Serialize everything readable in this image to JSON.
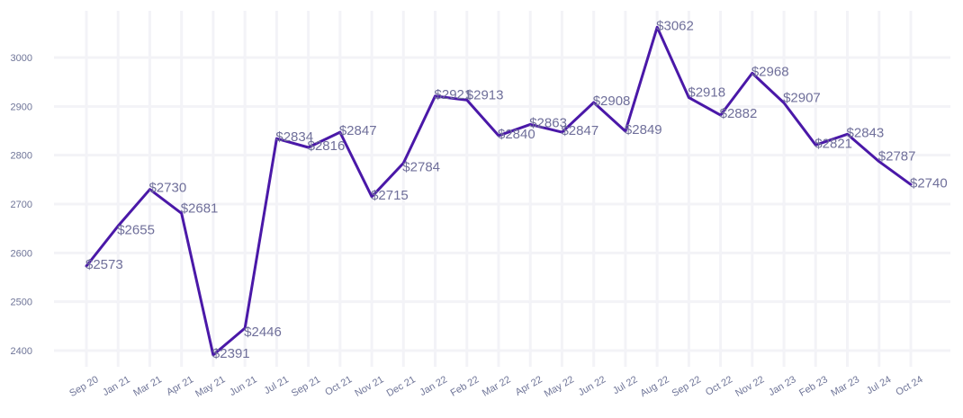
{
  "chart_data": {
    "type": "line",
    "title": "",
    "xlabel": "",
    "ylabel": "",
    "ylim": [
      2380,
      3080
    ],
    "yticks": [
      2400,
      2500,
      2600,
      2700,
      2800,
      2900,
      3000
    ],
    "grid": true,
    "legend": "none",
    "line_color": "#4a18a8",
    "label_color": "#6f6f9a",
    "tick_color": "#6f7598",
    "grid_color": "#f3f3f7",
    "categories": [
      "Sep 20",
      "Jan 21",
      "Mar 21",
      "Apr 21",
      "May 21",
      "Jun 21",
      "Jul 21",
      "Sep 21",
      "Oct 21",
      "Nov 21",
      "Dec 21",
      "Jan 22",
      "Feb 22",
      "Mar 22",
      "Apr 22",
      "May 22",
      "Jun 22",
      "Jul 22",
      "Aug 22",
      "Sep 22",
      "Oct 22",
      "Nov 22",
      "Jan 23",
      "Feb 23",
      "Mar 23",
      "Jul 24",
      "Oct 24"
    ],
    "values": [
      2573,
      2655,
      2730,
      2681,
      2391,
      2446,
      2834,
      2816,
      2847,
      2715,
      2784,
      2921,
      2913,
      2840,
      2863,
      2847,
      2908,
      2849,
      3062,
      2918,
      2882,
      2968,
      2907,
      2821,
      2843,
      2787,
      2740
    ],
    "data_labels": [
      "$2573",
      "$2655",
      "$2730",
      "$2681",
      "$2391",
      "$2446",
      "$2834",
      "$2816",
      "$2847",
      "$2715",
      "$2784",
      "$2921",
      "$2913",
      "$2840",
      "$2863",
      "$2847",
      "$2908",
      "$2849",
      "$3062",
      "$2918",
      "$2882",
      "$2968",
      "$2907",
      "$2821",
      "$2843",
      "$2787",
      "$2740"
    ]
  }
}
